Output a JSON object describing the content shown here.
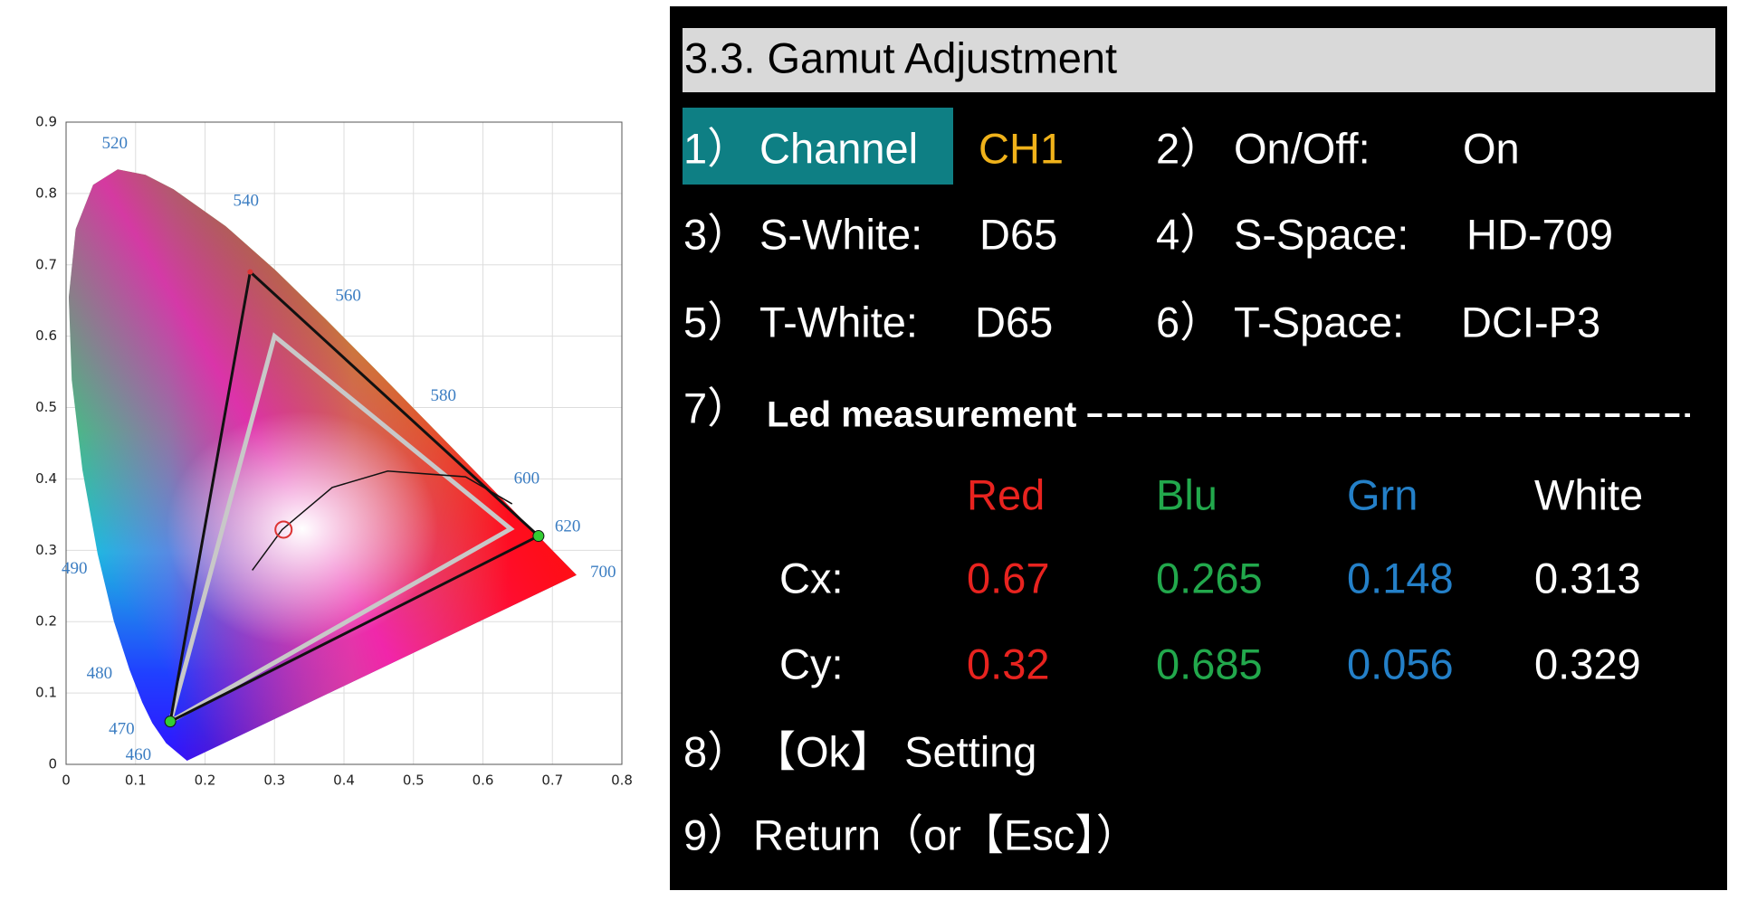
{
  "cie_diagram": {
    "xlim": [
      0,
      0.8
    ],
    "ylim": [
      0,
      0.9
    ],
    "xticks": [
      0,
      0.1,
      0.2,
      0.3,
      0.4,
      0.5,
      0.6,
      0.7,
      0.8
    ],
    "yticks": [
      0,
      0.1,
      0.2,
      0.3,
      0.4,
      0.5,
      0.6,
      0.7,
      0.8,
      0.9
    ],
    "grid": true,
    "wavelength_labels": [
      "520",
      "540",
      "560",
      "580",
      "600",
      "620",
      "700",
      "490",
      "480",
      "470",
      "460"
    ]
  },
  "menu": {
    "title": "3.3.  Gamut    Adjustment",
    "settings": [
      {
        "number": "1）",
        "label": "Channel",
        "value": "CH1"
      },
      {
        "number": "2）",
        "label": "On/Off:",
        "value": "On"
      },
      {
        "number": "3）",
        "label": "S-White:",
        "value": "D65"
      },
      {
        "number": "4）",
        "label": "S-Space:",
        "value": "HD-709"
      },
      {
        "number": "5）",
        "label": "T-White:",
        "value": "D65"
      },
      {
        "number": "6）",
        "label": "T-Space:",
        "value": "DCI-P3"
      }
    ],
    "measurement": {
      "number": "7）",
      "label": "Led measurement",
      "columns": [
        {
          "name": "Red",
          "color": "#e8231f"
        },
        {
          "name": "Blu",
          "color": "#22a84c"
        },
        {
          "name": "Grn",
          "color": "#2480c8"
        },
        {
          "name": "White",
          "color": "#ffffff"
        }
      ],
      "rows": [
        {
          "label": "Cx:",
          "values": [
            0.67,
            0.265,
            0.148,
            0.313
          ]
        },
        {
          "label": "Cy:",
          "values": [
            0.32,
            0.685,
            0.056,
            0.329
          ]
        }
      ]
    },
    "actions": [
      {
        "number": "8）",
        "label": "【Ok】 Setting"
      },
      {
        "number": "9）",
        "label": "Return（or【Esc】）"
      }
    ]
  }
}
